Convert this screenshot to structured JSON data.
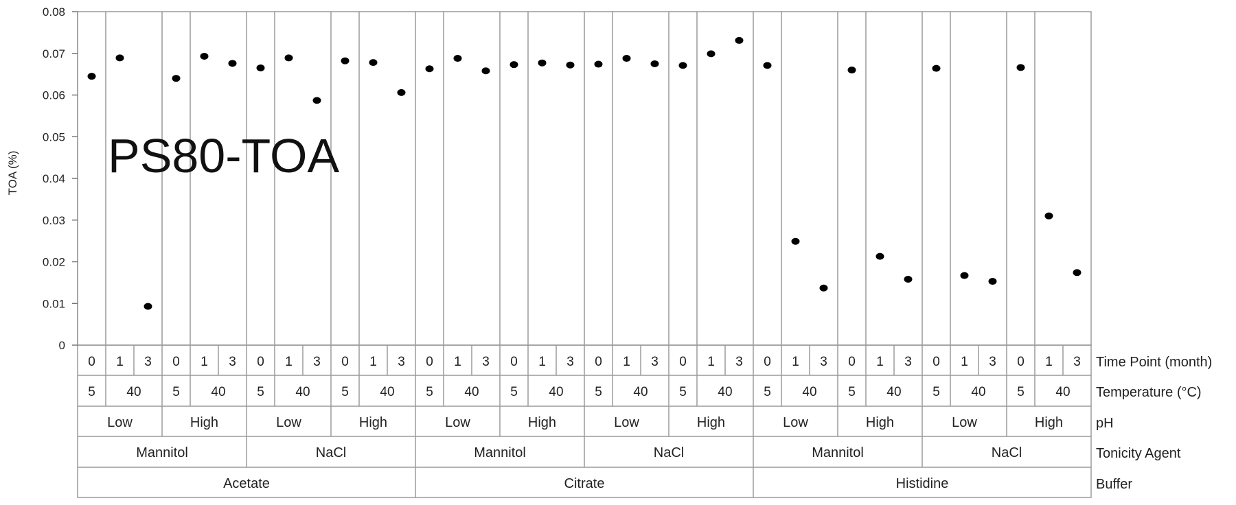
{
  "chart_data": {
    "type": "scatter",
    "annotation": "PS80-TOA",
    "ylabel": "TOA (%)",
    "ylim": [
      0,
      0.08
    ],
    "yticks": [
      "0",
      "0.01",
      "0.02",
      "0.03",
      "0.04",
      "0.05",
      "0.06",
      "0.07",
      "0.08"
    ],
    "grid": false,
    "legend": "none",
    "marker_color": "#000000",
    "row_labels": {
      "time": "Time Point (month)",
      "temperature": "Temperature (°C)",
      "ph": "pH",
      "tonicity": "Tonicity Agent",
      "buffer": "Buffer"
    },
    "buffers": [
      "Acetate",
      "Citrate",
      "Histidine"
    ],
    "tonicity_agents": [
      "Mannitol",
      "NaCl"
    ],
    "ph_levels": [
      "Low",
      "High"
    ],
    "temperatures": [
      "5",
      "40"
    ],
    "time_points": [
      "0",
      "1",
      "3"
    ],
    "values": [
      0.0645,
      0.0689,
      0.0093,
      0.064,
      0.0693,
      0.0676,
      0.0665,
      0.0689,
      0.0587,
      0.0682,
      0.0678,
      0.0606,
      0.0663,
      0.0688,
      0.0658,
      0.0673,
      0.0677,
      0.0672,
      0.0674,
      0.0688,
      0.0675,
      0.0671,
      0.0699,
      0.0731,
      0.0671,
      0.0249,
      0.0137,
      0.066,
      0.0213,
      0.0158,
      0.0664,
      0.0167,
      0.0153,
      0.0666,
      0.031,
      0.0174
    ]
  }
}
